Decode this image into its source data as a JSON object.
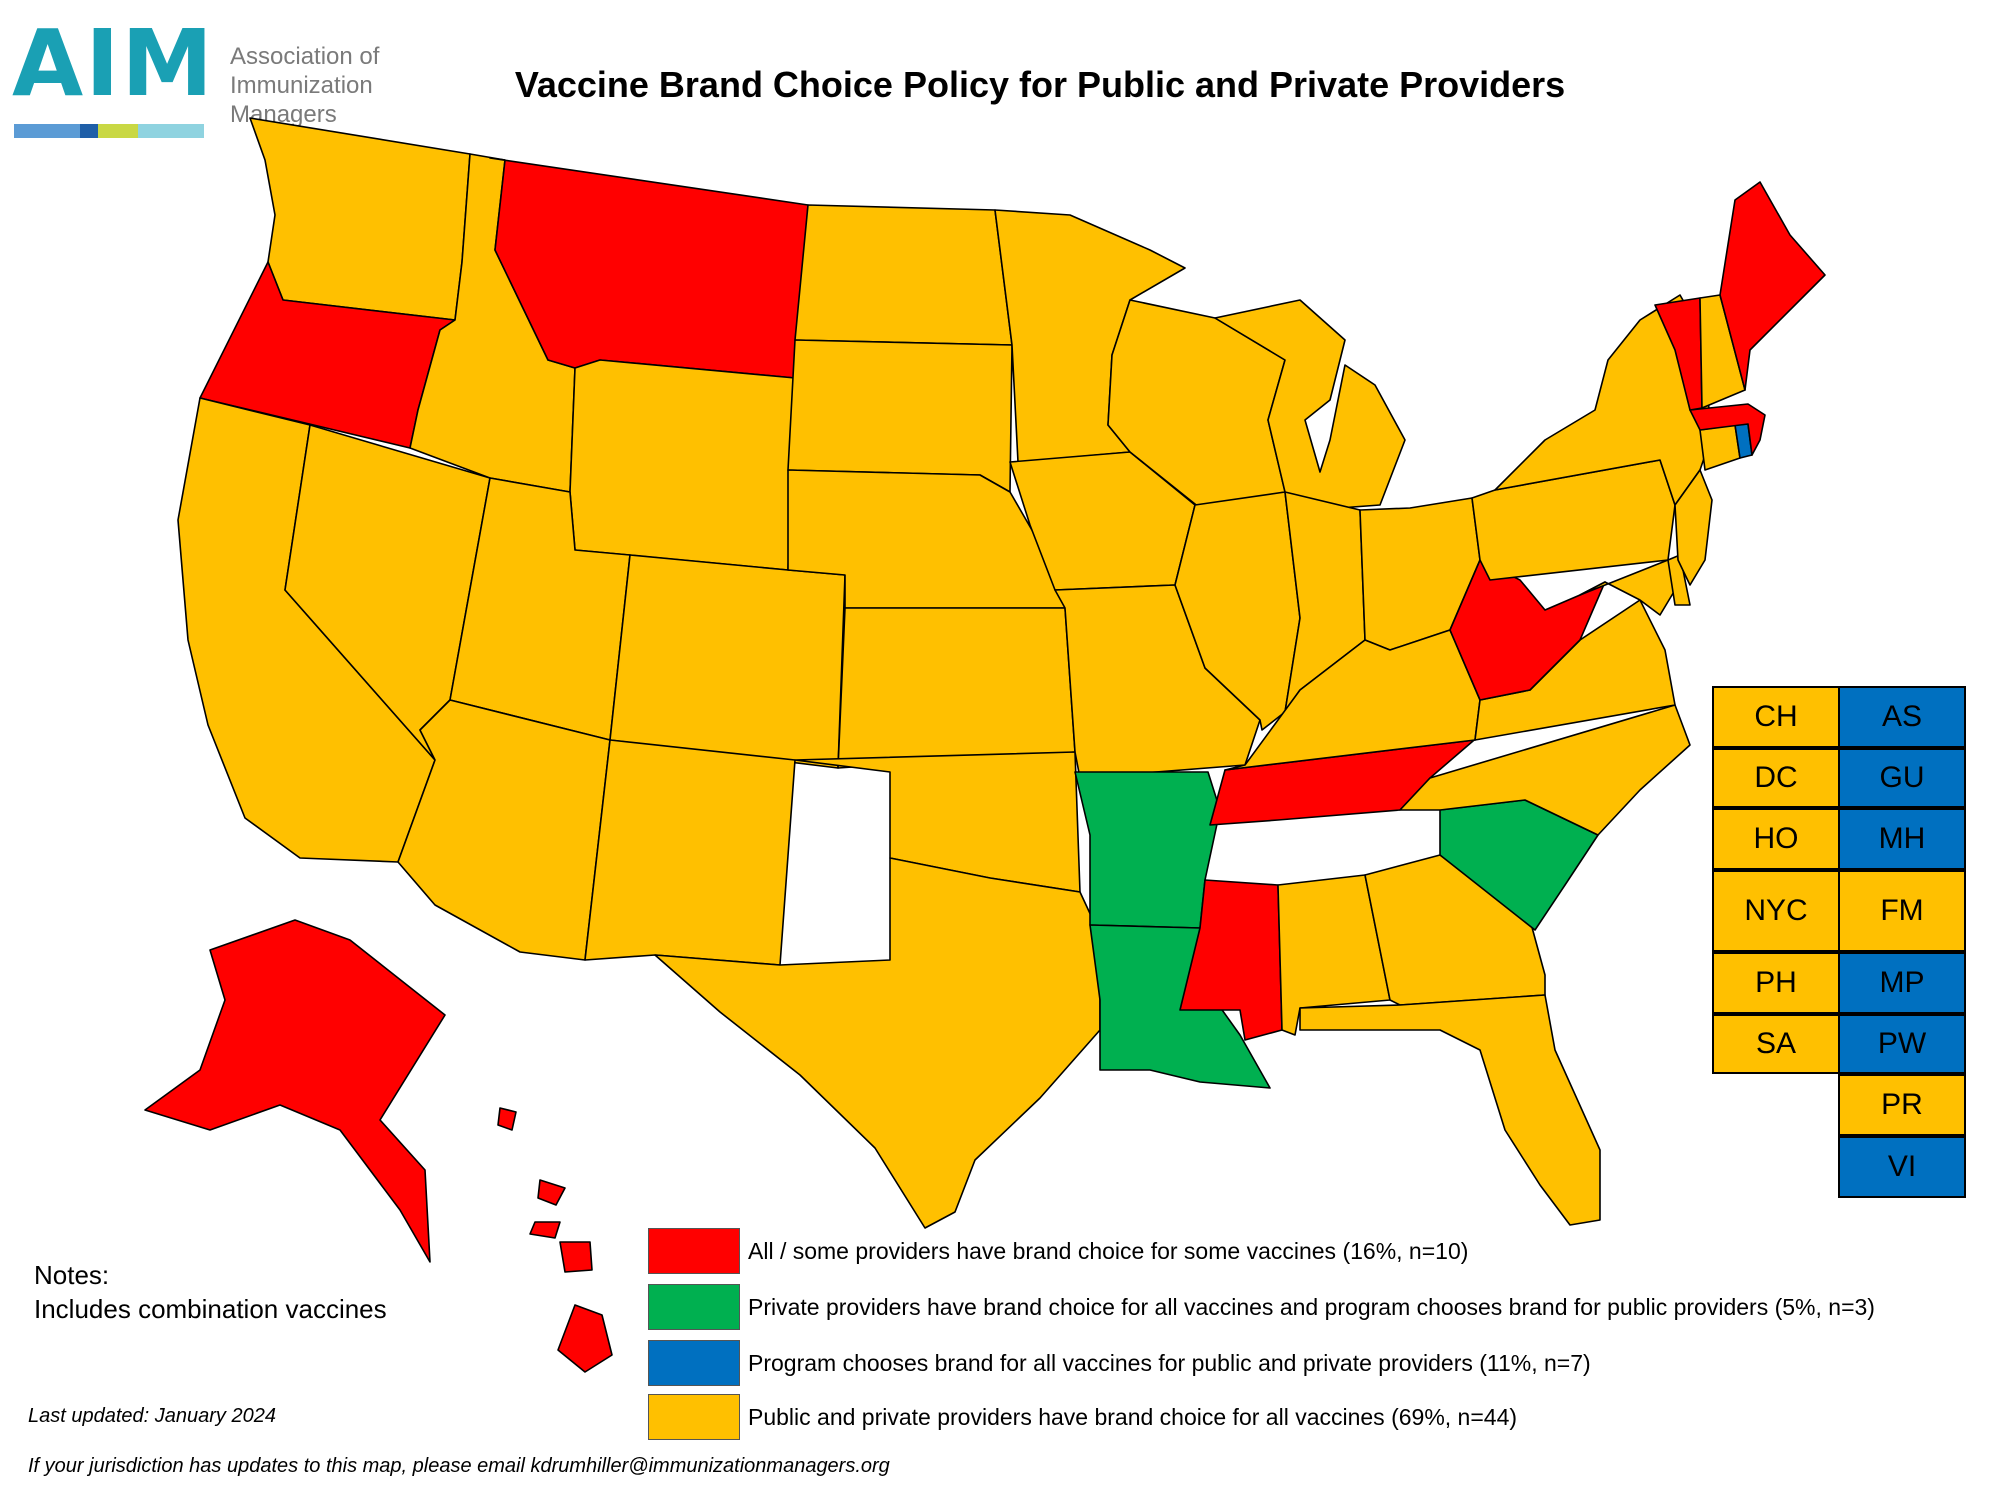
{
  "logo": {
    "mark": "AIM",
    "org_lines": [
      "Association of",
      "Immunization",
      "Managers"
    ]
  },
  "title": "Vaccine Brand Choice Policy for Public and Private Providers",
  "colors": {
    "red": "#ff0000",
    "green": "#00b050",
    "blue": "#0070c0",
    "yellow": "#ffc000"
  },
  "legend": [
    {
      "color": "#ff0000",
      "label": "All / some providers have brand choice for some vaccines",
      "stat": "(16%, n=10)"
    },
    {
      "color": "#00b050",
      "label": "Private providers have brand choice for all vaccines and program chooses brand for public providers",
      "stat": "(5%, n=3)"
    },
    {
      "color": "#0070c0",
      "label": "Program chooses brand for all vaccines for public and private providers",
      "stat": "(11%, n=7)"
    },
    {
      "color": "#ffc000",
      "label": "Public and private providers have brand choice for all vaccines",
      "stat": "(69%, n=44)"
    }
  ],
  "territories": {
    "left": [
      {
        "code": "CH",
        "color": "#ffc000"
      },
      {
        "code": "DC",
        "color": "#ffc000"
      },
      {
        "code": "HO",
        "color": "#ffc000"
      },
      {
        "code": "NYC",
        "color": "#ffc000"
      },
      {
        "code": "PH",
        "color": "#ffc000"
      },
      {
        "code": "SA",
        "color": "#ffc000"
      }
    ],
    "right": [
      {
        "code": "AS",
        "color": "#0070c0"
      },
      {
        "code": "GU",
        "color": "#0070c0"
      },
      {
        "code": "MH",
        "color": "#0070c0"
      },
      {
        "code": "FM",
        "color": "#ffc000"
      },
      {
        "code": "MP",
        "color": "#0070c0"
      },
      {
        "code": "PW",
        "color": "#0070c0"
      },
      {
        "code": "PR",
        "color": "#ffc000"
      },
      {
        "code": "VI",
        "color": "#0070c0"
      }
    ]
  },
  "notes": {
    "heading": "Notes:",
    "line": "Includes combination vaccines"
  },
  "last_updated": "Last updated: January 2024",
  "footer": "If your jurisdiction has updates to this map, please email kdrumhiller@immunizationmanagers.org"
}
